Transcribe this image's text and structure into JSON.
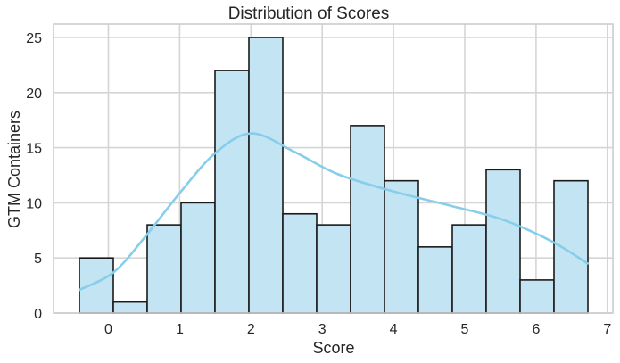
{
  "chart_data": {
    "type": "bar",
    "title": "Distribution of Scores",
    "xlabel": "Score",
    "ylabel": "GTM Containers",
    "xlim": [
      -0.85,
      7.05
    ],
    "ylim": [
      0,
      26.2
    ],
    "xticks": [
      0,
      1,
      2,
      3,
      4,
      5,
      6,
      7
    ],
    "yticks": [
      0,
      5,
      10,
      15,
      20,
      25
    ],
    "grid": true,
    "bin_edges": [
      -0.42,
      0.055,
      0.53,
      1.005,
      1.48,
      1.955,
      2.43,
      2.905,
      3.38,
      3.855,
      4.33,
      4.805,
      5.28,
      5.755,
      6.23,
      6.705
    ],
    "categories": [
      "-0.42–0.06",
      "0.06–0.53",
      "0.53–1.01",
      "1.01–1.48",
      "1.48–1.96",
      "1.96–2.43",
      "2.43–2.91",
      "2.91–3.38",
      "3.38–3.86",
      "3.86–4.33",
      "4.33–4.81",
      "4.81–5.28",
      "5.28–5.76",
      "5.76–6.23",
      "6.23–6.71"
    ],
    "values": [
      5,
      1,
      8,
      10,
      22,
      25,
      9,
      8,
      17,
      12,
      6,
      8,
      13,
      3,
      12
    ],
    "kde": {
      "x": [
        -0.42,
        0.06,
        0.5,
        1.0,
        1.5,
        2.0,
        2.6,
        3.2,
        4.0,
        4.8,
        5.5,
        6.2,
        6.7
      ],
      "y": [
        2.1,
        3.7,
        6.9,
        11.0,
        14.6,
        16.3,
        14.6,
        12.6,
        11.0,
        9.7,
        8.5,
        6.5,
        4.5
      ]
    },
    "colors": {
      "bar_fill": "#c3e4f3",
      "bar_edge": "#1a1a1a",
      "kde_line": "#87ceeb",
      "grid": "#d5d5d5"
    }
  }
}
